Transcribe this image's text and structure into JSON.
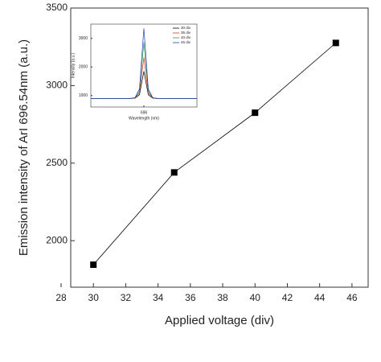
{
  "chart_data": [
    {
      "type": "line",
      "x_label": "Applied voltage (div)",
      "y_label": "Emission intensity of ArI 696.54nm (a.u.)",
      "x": [
        30,
        35,
        40,
        45
      ],
      "series": [
        {
          "values": [
            1845,
            2440,
            2825,
            3275
          ],
          "color": "#000000"
        }
      ],
      "xlim": [
        28,
        47
      ],
      "xticks": [
        28,
        30,
        32,
        34,
        36,
        38,
        40,
        42,
        44,
        46
      ],
      "ylim": [
        1700,
        3500
      ],
      "yticks": [
        2000,
        2500,
        3000,
        3500
      ],
      "marker": "square"
    },
    {
      "type": "line",
      "x_label": "Wavelength (nm)",
      "y_label": "Intensity (a.u.)",
      "x": [
        690,
        690.5,
        691,
        691.5,
        692,
        692.5,
        693,
        693.5,
        694,
        694.5,
        695,
        695.5,
        696,
        696.5,
        697,
        697.5,
        698,
        698.5,
        699,
        699.5,
        700,
        700.5,
        701,
        701.5,
        702
      ],
      "series": [
        {
          "name": "30 div",
          "color": "#000000",
          "values": [
            900,
            900,
            900,
            900,
            900,
            900,
            900,
            900,
            900,
            900,
            910,
            1028,
            1850,
            1028,
            910,
            900,
            900,
            900,
            900,
            900,
            900,
            900,
            900,
            900,
            900
          ]
        },
        {
          "name": "35 div",
          "color": "#e03020",
          "values": [
            900,
            900,
            900,
            900,
            900,
            900,
            900,
            900,
            900,
            900,
            916,
            1093,
            2330,
            1093,
            916,
            900,
            900,
            900,
            900,
            900,
            900,
            900,
            900,
            900,
            900
          ]
        },
        {
          "name": "40 div",
          "color": "#30a040",
          "values": [
            900,
            900,
            900,
            900,
            900,
            900,
            900,
            900,
            900,
            900,
            922,
            1166,
            2870,
            1166,
            922,
            900,
            900,
            900,
            900,
            900,
            900,
            900,
            900,
            900,
            900
          ]
        },
        {
          "name": "45 div",
          "color": "#2040c0",
          "values": [
            900,
            900,
            900,
            900,
            900,
            900,
            900,
            900,
            900,
            900,
            927,
            1231,
            3350,
            1231,
            927,
            900,
            900,
            900,
            900,
            900,
            900,
            900,
            900,
            900,
            900
          ]
        }
      ],
      "xlim": [
        690,
        702
      ],
      "xticks": [
        696
      ],
      "ylim": [
        600,
        3500
      ],
      "yticks": [
        1000,
        2000,
        3000
      ],
      "legend": "upper right"
    }
  ]
}
